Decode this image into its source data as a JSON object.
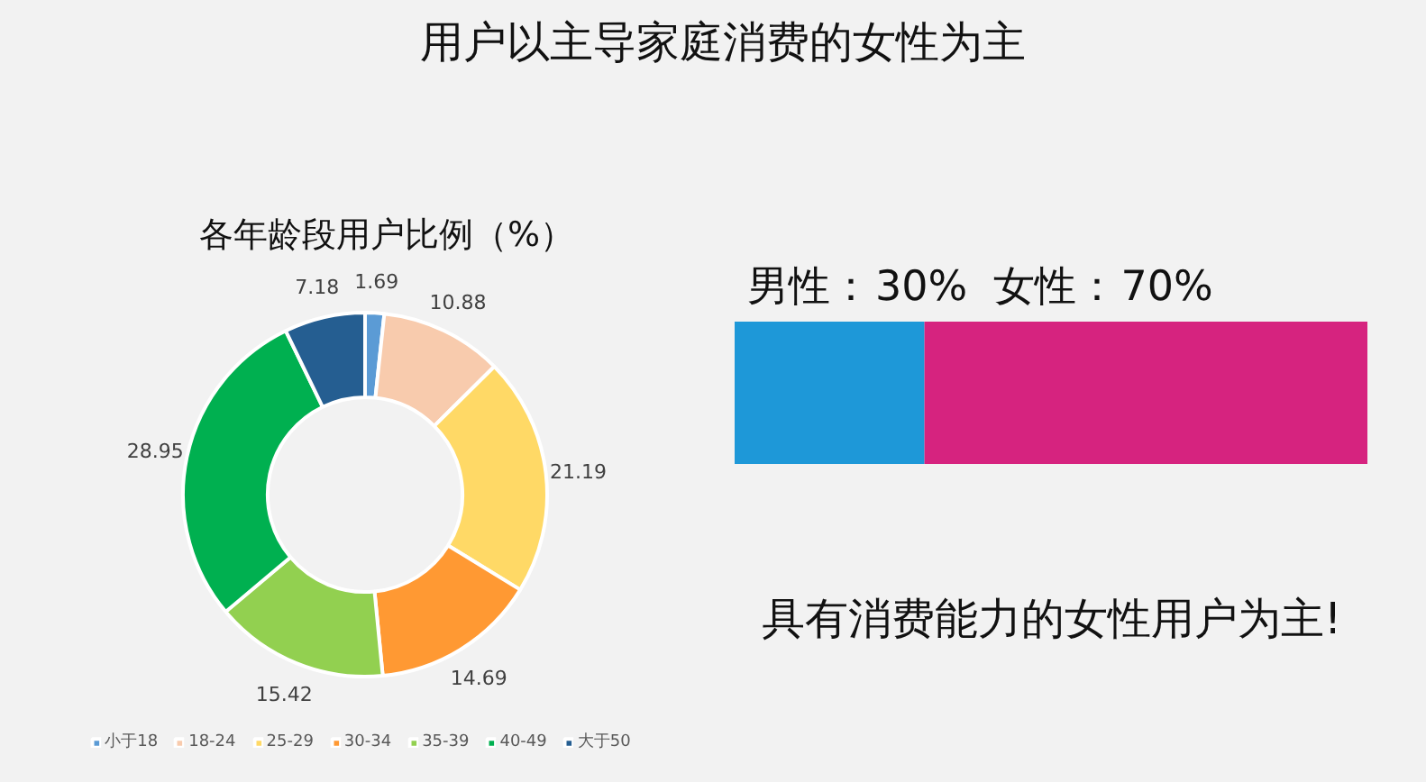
{
  "chart_data": [
    {
      "type": "other",
      "title": "用户以主导家庭消费的女性为主"
    },
    {
      "type": "donut",
      "title": "各年龄段用户比例（%）",
      "categories": [
        "小于18",
        "18-24",
        "25-29",
        "30-34",
        "35-39",
        "40-49",
        "大于50"
      ],
      "values": [
        1.69,
        10.88,
        21.19,
        14.69,
        15.42,
        28.95,
        7.18
      ],
      "colors": [
        "#5b9bd5",
        "#f8cbad",
        "#ffd966",
        "#ff9933",
        "#92d050",
        "#00b050",
        "#255e91"
      ],
      "data_labels": true,
      "legend": "bottom"
    },
    {
      "type": "bar",
      "orientation": "horizontal",
      "stacked": true,
      "categories": [
        null
      ],
      "series": [
        {
          "name": "男性：",
          "color": "#1e98d8",
          "values": [
            30
          ],
          "value_labels": [
            "30%"
          ]
        },
        {
          "name": "女性：",
          "color": "#d6237f",
          "values": [
            70
          ],
          "value_labels": [
            "70%"
          ]
        }
      ],
      "tick_labels": false,
      "annotations": [
        "具有消费能力的女性用户为主!"
      ]
    }
  ]
}
